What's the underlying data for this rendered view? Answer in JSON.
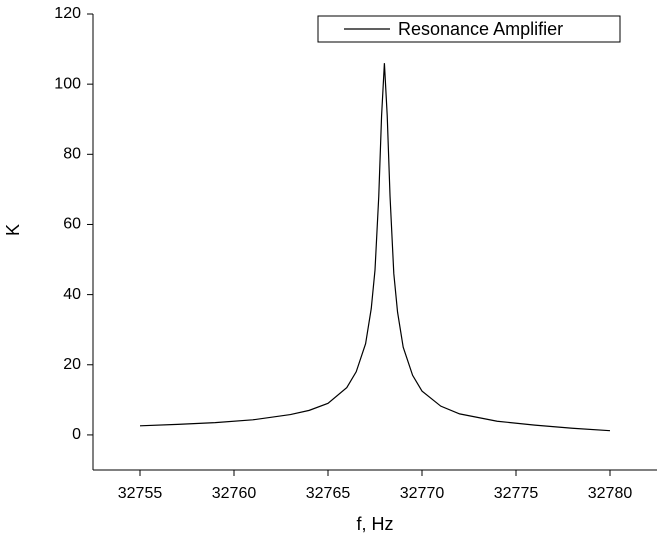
{
  "chart_data": {
    "type": "line",
    "x_label": "f, Hz",
    "y_label": "K",
    "xlim": [
      32752.5,
      32782.5
    ],
    "ylim": [
      -10,
      120
    ],
    "xticks": [
      32755,
      32760,
      32765,
      32770,
      32775,
      32780
    ],
    "yticks": [
      0,
      20,
      40,
      60,
      80,
      100,
      120
    ],
    "legend": "top-right",
    "x": [
      32755,
      32757,
      32759,
      32761,
      32763,
      32764,
      32765,
      32766,
      32766.5,
      32767,
      32767.3,
      32767.5,
      32767.7,
      32767.85,
      32768,
      32768.15,
      32768.3,
      32768.5,
      32768.7,
      32769,
      32769.5,
      32770,
      32771,
      32772,
      32774,
      32776,
      32778,
      32780
    ],
    "series": [
      {
        "name": "Resonance Amplifier",
        "color": "#000000",
        "values": [
          2.6,
          3.0,
          3.5,
          4.3,
          5.8,
          7.0,
          9.0,
          13.5,
          18,
          26,
          36,
          47,
          68,
          91,
          106,
          91,
          68,
          46,
          35,
          25,
          17,
          12.5,
          8.2,
          6.0,
          3.9,
          2.8,
          1.9,
          1.2
        ]
      }
    ]
  }
}
